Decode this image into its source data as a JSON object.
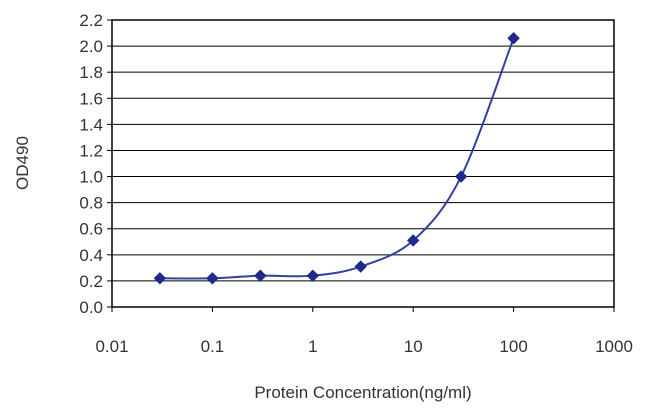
{
  "chart_data": {
    "type": "line",
    "title": "",
    "xlabel": "Protein Concentration(ng/ml)",
    "ylabel": "OD490",
    "x_scale": "log",
    "xlim": [
      0.01,
      1000
    ],
    "ylim": [
      0.0,
      2.2
    ],
    "x_ticks": [
      "0.01",
      "0.1",
      "1",
      "10",
      "100",
      "1000"
    ],
    "y_ticks": [
      "0.0",
      "0.2",
      "0.4",
      "0.6",
      "0.8",
      "1.0",
      "1.2",
      "1.4",
      "1.6",
      "1.8",
      "2.0",
      "2.2"
    ],
    "grid": "horizontal",
    "series": [
      {
        "x": [
          0.03,
          0.1,
          0.3,
          1,
          3,
          10,
          30,
          100
        ],
        "y": [
          0.22,
          0.22,
          0.24,
          0.24,
          0.31,
          0.51,
          1.0,
          2.06
        ],
        "color": "#3340a0",
        "marker": "diamond"
      }
    ]
  }
}
